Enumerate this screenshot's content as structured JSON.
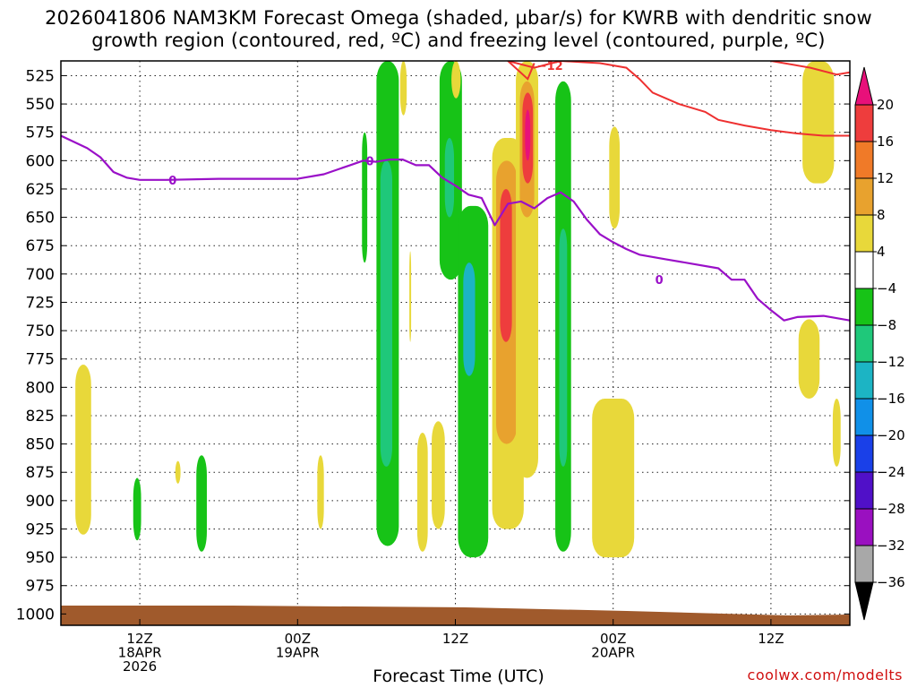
{
  "header": {
    "title_line1": "2026041806 NAM3KM Forecast Omega (shaded, µbar/s) for KWRB with dendritic snow",
    "title_line2": "growth region (contoured, red, ºC) and freezing level (contoured, purple, ºC)"
  },
  "credit": "coolwx.com/modelts",
  "chart_data": {
    "type": "heatmap",
    "title": "2026041806 NAM3KM Forecast Omega (shaded, µbar/s) for KWRB with dendritic snow growth region (contoured, red, ºC) and freezing level (contoured, purple, ºC)",
    "xlabel": "Forecast Time (UTC)",
    "ylabel": "",
    "x_units": "forecast hour from 2026041806",
    "xlim": [
      0,
      60
    ],
    "ylim": [
      1010,
      512
    ],
    "y_ticks": [
      525,
      550,
      575,
      600,
      625,
      650,
      675,
      700,
      725,
      750,
      775,
      800,
      825,
      850,
      875,
      900,
      925,
      950,
      975,
      1000
    ],
    "x_ticks": [
      {
        "x": 6,
        "lines": [
          "12Z",
          "18APR",
          "2026"
        ]
      },
      {
        "x": 18,
        "lines": [
          "00Z",
          "19APR"
        ]
      },
      {
        "x": 30,
        "lines": [
          "12Z"
        ]
      },
      {
        "x": 42,
        "lines": [
          "00Z",
          "20APR"
        ]
      },
      {
        "x": 54,
        "lines": [
          "12Z"
        ]
      }
    ],
    "colorbar": {
      "levels": [
        -36,
        -32,
        -28,
        -24,
        -20,
        -16,
        -12,
        -8,
        -4,
        4,
        8,
        12,
        16,
        20
      ],
      "labels": [
        "20",
        "16",
        "12",
        "8",
        "4",
        "−4",
        "−8",
        "−12",
        "−16",
        "−20",
        "−24",
        "−28",
        "−32",
        "−36"
      ],
      "colors_top_to_bottom": [
        "#e8107a",
        "#ee3d3d",
        "#f07a28",
        "#e8a22e",
        "#e8d83a",
        "#ffffff",
        "#17c317",
        "#1fc87a",
        "#1cb4c4",
        "#1090e8",
        "#1a40e8",
        "#5010c8",
        "#9a10c0",
        "#a8a8a8",
        "#000000"
      ]
    },
    "freezing_level": {
      "color": "#9a10c8",
      "label": "0",
      "points": [
        [
          0,
          578
        ],
        [
          2,
          589
        ],
        [
          3,
          597
        ],
        [
          4,
          610
        ],
        [
          5,
          615
        ],
        [
          6,
          617
        ],
        [
          8,
          617
        ],
        [
          12,
          616
        ],
        [
          16,
          616
        ],
        [
          18,
          616
        ],
        [
          20,
          612
        ],
        [
          22,
          604
        ],
        [
          23,
          600
        ],
        [
          24,
          601
        ],
        [
          25,
          599
        ],
        [
          26,
          599
        ],
        [
          27,
          604
        ],
        [
          28,
          604
        ],
        [
          29,
          615
        ],
        [
          30,
          622
        ],
        [
          31,
          630
        ],
        [
          32,
          633
        ],
        [
          33,
          657
        ],
        [
          34,
          638
        ],
        [
          35,
          636
        ],
        [
          36,
          642
        ],
        [
          37,
          633
        ],
        [
          38,
          628
        ],
        [
          39,
          636
        ],
        [
          40,
          652
        ],
        [
          41,
          665
        ],
        [
          42,
          672
        ],
        [
          43,
          678
        ],
        [
          44,
          683
        ],
        [
          46,
          687
        ],
        [
          48,
          691
        ],
        [
          50,
          695
        ],
        [
          51,
          705
        ],
        [
          52,
          705
        ],
        [
          53,
          722
        ],
        [
          54,
          732
        ],
        [
          55,
          741
        ],
        [
          56,
          738
        ],
        [
          58,
          737
        ],
        [
          60,
          741
        ]
      ]
    },
    "dgz_contours": {
      "color": "#ee3030",
      "label": "−12",
      "upper_line": [
        [
          34,
          512
        ],
        [
          36,
          518
        ],
        [
          38,
          512
        ],
        [
          41,
          514
        ],
        [
          43,
          518
        ],
        [
          44,
          528
        ],
        [
          45,
          540
        ],
        [
          47,
          550
        ],
        [
          49,
          557
        ],
        [
          50,
          564
        ],
        [
          52,
          569
        ],
        [
          54,
          573
        ],
        [
          56,
          576
        ],
        [
          58,
          578
        ],
        [
          60,
          578
        ]
      ],
      "lower_line": [
        [
          54,
          512
        ],
        [
          57,
          518
        ],
        [
          59,
          524
        ],
        [
          60,
          522
        ]
      ],
      "dip": [
        [
          34,
          512
        ],
        [
          35.5,
          528
        ],
        [
          36,
          514
        ]
      ]
    },
    "omega_cells": [
      {
        "name": "green-column-a",
        "value": -6,
        "x": [
          24,
          25.7
        ],
        "p": [
          512,
          940
        ]
      },
      {
        "name": "cyan-core-a",
        "value": -10,
        "x": [
          24.3,
          25.2
        ],
        "p": [
          600,
          870
        ]
      },
      {
        "name": "green-column-b",
        "value": -6,
        "x": [
          28.8,
          30.5
        ],
        "p": [
          512,
          705
        ]
      },
      {
        "name": "cyan-core-b",
        "value": -10,
        "x": [
          29.2,
          29.9
        ],
        "p": [
          580,
          650
        ]
      },
      {
        "name": "green-column-c",
        "value": -6,
        "x": [
          30.2,
          32.5
        ],
        "p": [
          640,
          950
        ]
      },
      {
        "name": "cyan-core-c",
        "value": -12,
        "x": [
          30.6,
          31.5
        ],
        "p": [
          690,
          790
        ]
      },
      {
        "name": "green-column-d",
        "value": -6,
        "x": [
          37.6,
          38.8
        ],
        "p": [
          530,
          945
        ]
      },
      {
        "name": "cyan-core-d",
        "value": -10,
        "x": [
          37.9,
          38.5
        ],
        "p": [
          660,
          870
        ]
      },
      {
        "name": "green-strip-e",
        "value": -6,
        "x": [
          22.9,
          23.3
        ],
        "p": [
          575,
          690
        ]
      },
      {
        "name": "green-small-f",
        "value": -6,
        "x": [
          5.5,
          6.1
        ],
        "p": [
          880,
          935
        ]
      },
      {
        "name": "green-small-g",
        "value": -6,
        "x": [
          10.3,
          11.1
        ],
        "p": [
          860,
          945
        ]
      },
      {
        "name": "yellow-left-h",
        "value": 6,
        "x": [
          1.1,
          2.3
        ],
        "p": [
          780,
          930
        ]
      },
      {
        "name": "yellow-small-i",
        "value": 6,
        "x": [
          8.7,
          9.1
        ],
        "p": [
          865,
          885
        ]
      },
      {
        "name": "yellow-small-j",
        "value": 6,
        "x": [
          19.5,
          20.0
        ],
        "p": [
          860,
          925
        ]
      },
      {
        "name": "yellow-strip-k",
        "value": 6,
        "x": [
          25.8,
          26.3
        ],
        "p": [
          512,
          560
        ]
      },
      {
        "name": "yellow-thin-l",
        "value": 6,
        "x": [
          26.5,
          26.6
        ],
        "p": [
          680,
          760
        ]
      },
      {
        "name": "yellow-m",
        "value": 6,
        "x": [
          27.1,
          27.9
        ],
        "p": [
          840,
          945
        ]
      },
      {
        "name": "yellow-n",
        "value": 6,
        "x": [
          28.2,
          29.2
        ],
        "p": [
          830,
          925
        ]
      },
      {
        "name": "yellow-top-o",
        "value": 6,
        "x": [
          29.7,
          30.4
        ],
        "p": [
          512,
          545
        ]
      },
      {
        "name": "yellow-p",
        "value": 6,
        "x": [
          41.7,
          42.5
        ],
        "p": [
          570,
          660
        ]
      },
      {
        "name": "yellow-q",
        "value": 6,
        "x": [
          40.4,
          43.6
        ],
        "p": [
          810,
          950
        ]
      },
      {
        "name": "yellow-r",
        "value": 6,
        "x": [
          56.4,
          58.8
        ],
        "p": [
          512,
          620
        ]
      },
      {
        "name": "yellow-s",
        "value": 6,
        "x": [
          56.1,
          57.7
        ],
        "p": [
          740,
          810
        ]
      },
      {
        "name": "yellow-t",
        "value": 6,
        "x": [
          58.7,
          59.3
        ],
        "p": [
          810,
          870
        ]
      },
      {
        "name": "warm-plume",
        "value": 6,
        "x": [
          32.8,
          35.2
        ],
        "p": [
          580,
          925
        ]
      },
      {
        "name": "warm-plume-orange",
        "value": 10,
        "x": [
          33.1,
          34.7
        ],
        "p": [
          600,
          850
        ]
      },
      {
        "name": "warm-plume-red",
        "value": 18,
        "x": [
          33.4,
          34.3
        ],
        "p": [
          625,
          760
        ]
      },
      {
        "name": "warm-upper",
        "value": 6,
        "x": [
          34.6,
          36.3
        ],
        "p": [
          512,
          880
        ]
      },
      {
        "name": "warm-upper-orange",
        "value": 10,
        "x": [
          34.9,
          36.0
        ],
        "p": [
          530,
          650
        ]
      },
      {
        "name": "warm-upper-red",
        "value": 18,
        "x": [
          35.1,
          35.9
        ],
        "p": [
          540,
          620
        ]
      },
      {
        "name": "warm-upper-magenta",
        "value": 22,
        "x": [
          35.3,
          35.7
        ],
        "p": [
          555,
          600
        ]
      }
    ],
    "terrain": {
      "color": "#a05a2c",
      "label": ""
    }
  }
}
